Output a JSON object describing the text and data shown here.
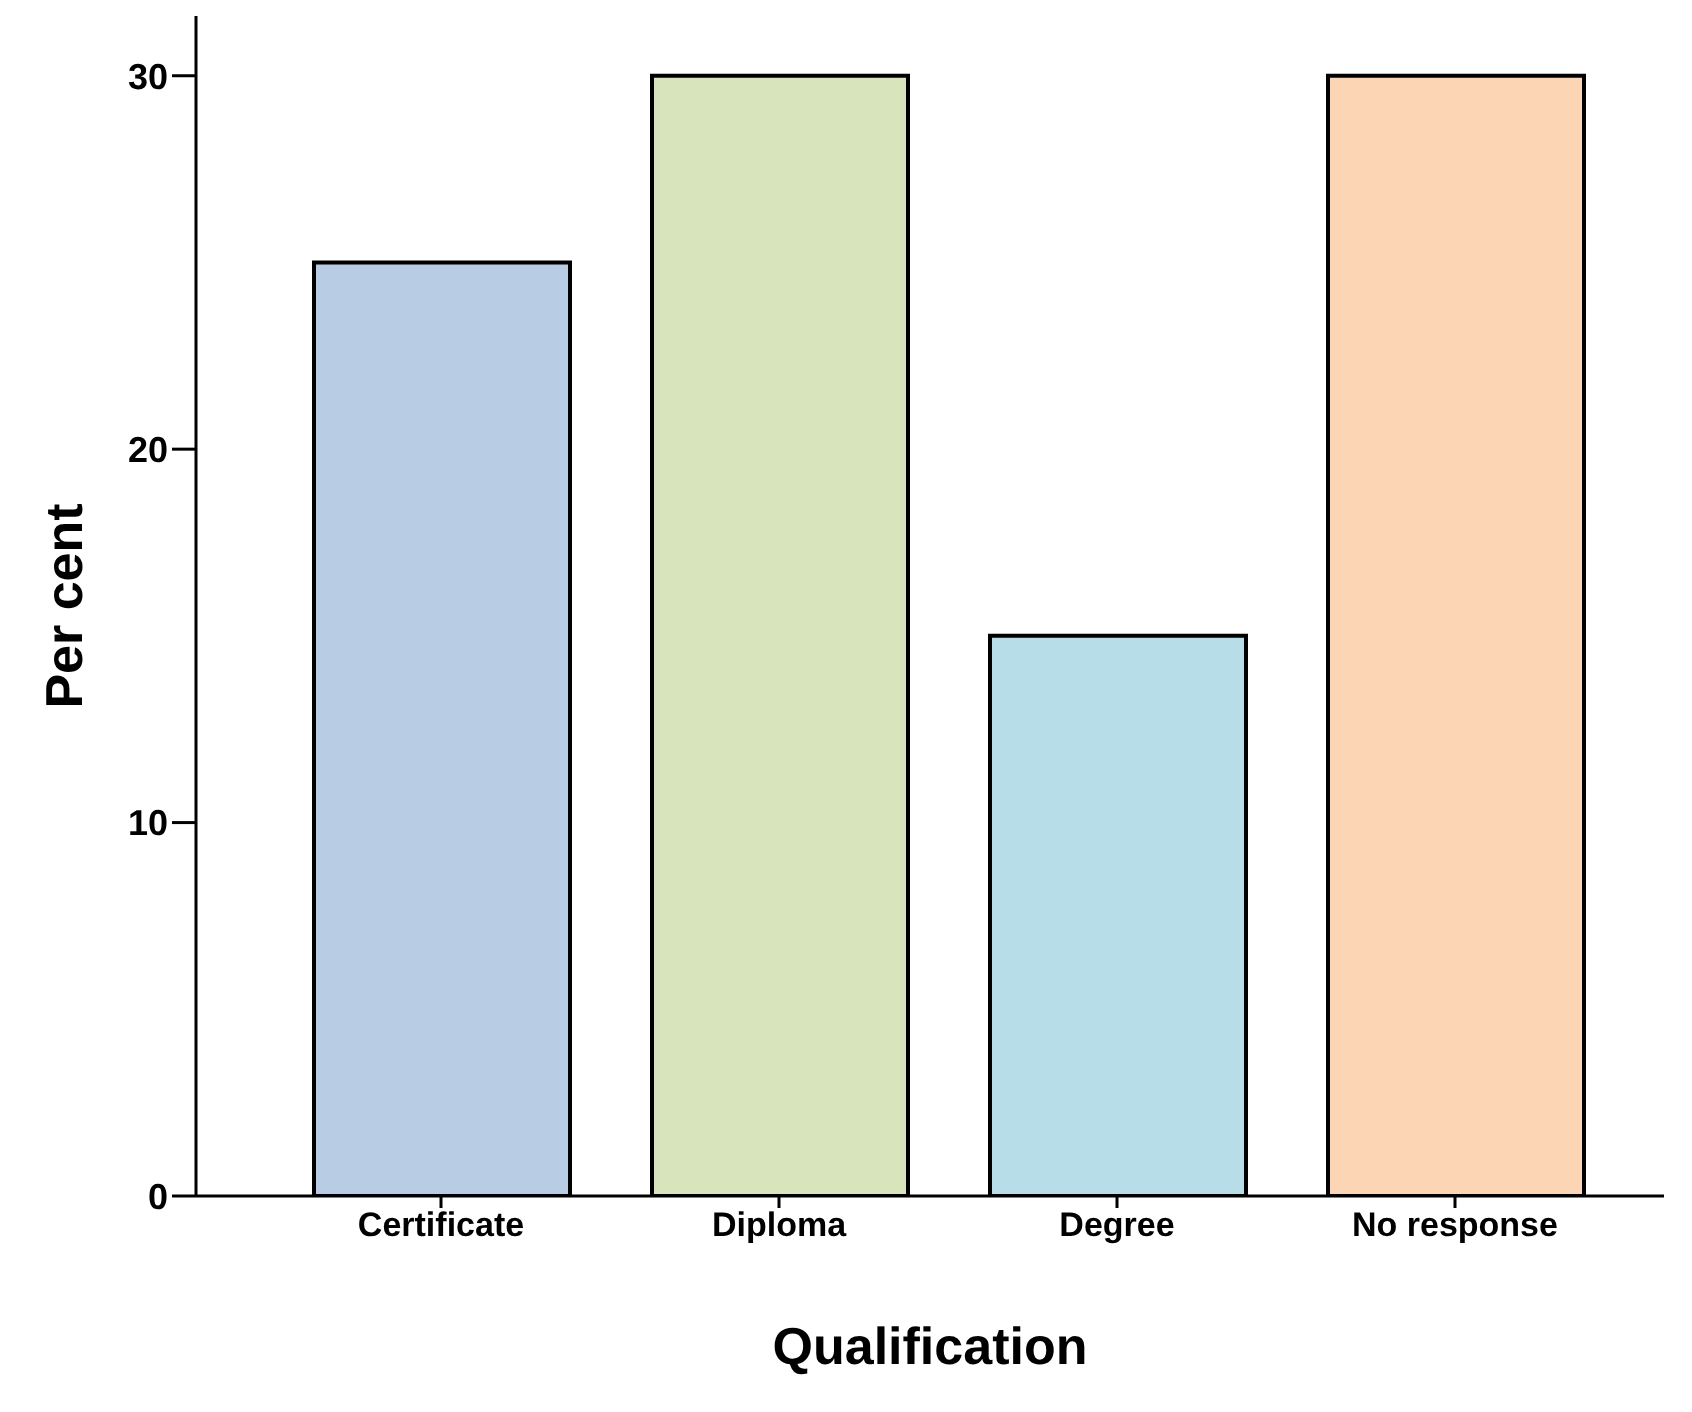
{
  "chart_data": {
    "type": "bar",
    "xlabel": "Qualification",
    "ylabel": "Per cent",
    "categories": [
      "Certificate",
      "Diploma",
      "Degree",
      "No response"
    ],
    "values": [
      25,
      30,
      15,
      30
    ],
    "colors": [
      "#b8cce4",
      "#d7e4bc",
      "#b7dee8",
      "#fcd5b4"
    ],
    "ylim": [
      0,
      31.6
    ],
    "yticks": [
      0,
      10,
      20,
      30
    ],
    "grid": false,
    "legend": false
  }
}
